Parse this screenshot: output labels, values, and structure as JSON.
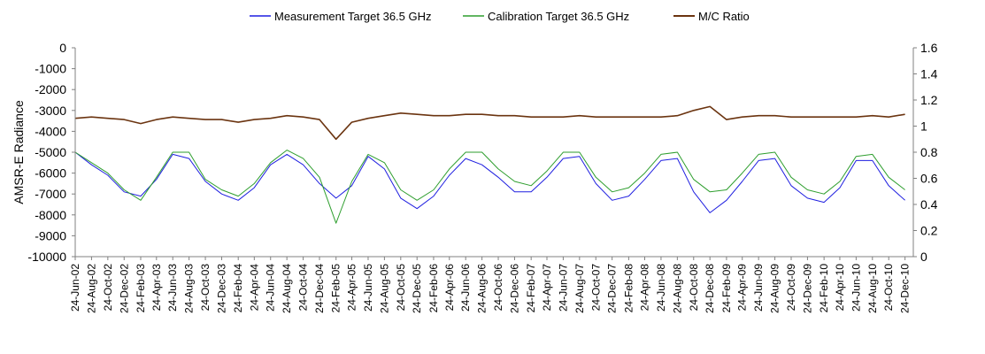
{
  "chart_data": {
    "type": "line",
    "title": "",
    "xlabel": "",
    "ylabel": "AMSR-E Radiance",
    "y2label": "",
    "ylim": [
      -10000,
      0
    ],
    "y2lim": [
      0,
      1.6
    ],
    "xlim": [
      "2002-06-24",
      "2011-01-24"
    ],
    "grid": false,
    "legend_position": "top",
    "yticks": [
      "0",
      "-1000",
      "-2000",
      "-3000",
      "-4000",
      "-5000",
      "-6000",
      "-7000",
      "-8000",
      "-9000",
      "-10000"
    ],
    "y2ticks": [
      "0",
      "0.2",
      "0.4",
      "0.6",
      "0.8",
      "1",
      "1.2",
      "1.4",
      "1.6"
    ],
    "xticks": [
      "24-Jun-02",
      "24-Aug-02",
      "24-Oct-02",
      "24-Dec-02",
      "24-Feb-03",
      "24-Apr-03",
      "24-Jun-03",
      "24-Aug-03",
      "24-Oct-03",
      "24-Dec-03",
      "24-Feb-04",
      "24-Apr-04",
      "24-Jun-04",
      "24-Aug-04",
      "24-Oct-04",
      "24-Dec-04",
      "24-Feb-05",
      "24-Apr-05",
      "24-Jun-05",
      "24-Aug-05",
      "24-Oct-05",
      "24-Dec-05",
      "24-Feb-06",
      "24-Apr-06",
      "24-Jun-06",
      "24-Aug-06",
      "24-Oct-06",
      "24-Dec-06",
      "24-Feb-07",
      "24-Apr-07",
      "24-Jun-07",
      "24-Aug-07",
      "24-Oct-07",
      "24-Dec-07",
      "24-Feb-08",
      "24-Apr-08",
      "24-Jun-08",
      "24-Aug-08",
      "24-Oct-08",
      "24-Dec-08",
      "24-Feb-09",
      "24-Apr-09",
      "24-Jun-09",
      "24-Aug-09",
      "24-Oct-09",
      "24-Dec-09",
      "24-Feb-10",
      "24-Apr-10",
      "24-Jun-10",
      "24-Aug-10",
      "24-Oct-10",
      "24-Dec-10"
    ],
    "series": [
      {
        "name": "Measurement Target 36.5 GHz",
        "color": "#1f1fe0",
        "axis": "left",
        "x": [
          "2002-06-24",
          "2002-08-24",
          "2002-10-24",
          "2002-12-24",
          "2003-02-24",
          "2003-04-24",
          "2003-06-24",
          "2003-08-24",
          "2003-10-24",
          "2003-12-24",
          "2004-02-24",
          "2004-04-24",
          "2004-06-24",
          "2004-08-24",
          "2004-10-24",
          "2004-12-24",
          "2005-02-24",
          "2005-04-24",
          "2005-06-24",
          "2005-08-24",
          "2005-10-24",
          "2005-12-24",
          "2006-02-24",
          "2006-04-24",
          "2006-06-24",
          "2006-08-24",
          "2006-10-24",
          "2006-12-24",
          "2007-02-24",
          "2007-04-24",
          "2007-06-24",
          "2007-08-24",
          "2007-10-24",
          "2007-12-24",
          "2008-02-24",
          "2008-04-24",
          "2008-06-24",
          "2008-08-24",
          "2008-10-24",
          "2008-12-24",
          "2009-02-24",
          "2009-04-24",
          "2009-06-24",
          "2009-08-24",
          "2009-10-24",
          "2009-12-24",
          "2010-02-24",
          "2010-04-24",
          "2010-06-24",
          "2010-08-24",
          "2010-10-24",
          "2010-12-24"
        ],
        "values": [
          -5000,
          -5600,
          -6100,
          -6900,
          -7100,
          -6300,
          -5100,
          -5300,
          -6400,
          -7000,
          -7300,
          -6700,
          -5600,
          -5100,
          -5600,
          -6500,
          -7200,
          -6600,
          -5200,
          -5800,
          -7200,
          -7700,
          -7100,
          -6100,
          -5300,
          -5600,
          -6200,
          -6900,
          -6900,
          -6200,
          -5300,
          -5200,
          -6500,
          -7300,
          -7100,
          -6300,
          -5400,
          -5300,
          -6900,
          -7900,
          -7300,
          -6400,
          -5400,
          -5300,
          -6600,
          -7200,
          -7400,
          -6700,
          -5400,
          -5400,
          -6600,
          -7300
        ]
      },
      {
        "name": "Calibration Target 36.5 GHz",
        "color": "#2e9e2e",
        "axis": "left",
        "x": [
          "2002-06-24",
          "2002-08-24",
          "2002-10-24",
          "2002-12-24",
          "2003-02-24",
          "2003-04-24",
          "2003-06-24",
          "2003-08-24",
          "2003-10-24",
          "2003-12-24",
          "2004-02-24",
          "2004-04-24",
          "2004-06-24",
          "2004-08-24",
          "2004-10-24",
          "2004-12-24",
          "2005-02-24",
          "2005-04-24",
          "2005-06-24",
          "2005-08-24",
          "2005-10-24",
          "2005-12-24",
          "2006-02-24",
          "2006-04-24",
          "2006-06-24",
          "2006-08-24",
          "2006-10-24",
          "2006-12-24",
          "2007-02-24",
          "2007-04-24",
          "2007-06-24",
          "2007-08-24",
          "2007-10-24",
          "2007-12-24",
          "2008-02-24",
          "2008-04-24",
          "2008-06-24",
          "2008-08-24",
          "2008-10-24",
          "2008-12-24",
          "2009-02-24",
          "2009-04-24",
          "2009-06-24",
          "2009-08-24",
          "2009-10-24",
          "2009-12-24",
          "2010-02-24",
          "2010-04-24",
          "2010-06-24",
          "2010-08-24",
          "2010-10-24",
          "2010-12-24"
        ],
        "values": [
          -5000,
          -5500,
          -6000,
          -6800,
          -7300,
          -6200,
          -5000,
          -5000,
          -6300,
          -6800,
          -7100,
          -6500,
          -5500,
          -4900,
          -5300,
          -6200,
          -8400,
          -6400,
          -5100,
          -5500,
          -6800,
          -7300,
          -6800,
          -5800,
          -5000,
          -5000,
          -5800,
          -6400,
          -6600,
          -5900,
          -5000,
          -5000,
          -6200,
          -6900,
          -6700,
          -6000,
          -5100,
          -5000,
          -6300,
          -6900,
          -6800,
          -6000,
          -5100,
          -5000,
          -6200,
          -6800,
          -7000,
          -6400,
          -5200,
          -5100,
          -6200,
          -6800
        ]
      },
      {
        "name": "M/C Ratio",
        "color": "#6b3410",
        "axis": "right",
        "x": [
          "2002-06-24",
          "2002-08-24",
          "2002-10-24",
          "2002-12-24",
          "2003-02-24",
          "2003-04-24",
          "2003-06-24",
          "2003-08-24",
          "2003-10-24",
          "2003-12-24",
          "2004-02-24",
          "2004-04-24",
          "2004-06-24",
          "2004-08-24",
          "2004-10-24",
          "2004-12-24",
          "2005-02-24",
          "2005-04-24",
          "2005-06-24",
          "2005-08-24",
          "2005-10-24",
          "2005-12-24",
          "2006-02-24",
          "2006-04-24",
          "2006-06-24",
          "2006-08-24",
          "2006-10-24",
          "2006-12-24",
          "2007-02-24",
          "2007-04-24",
          "2007-06-24",
          "2007-08-24",
          "2007-10-24",
          "2007-12-24",
          "2008-02-24",
          "2008-04-24",
          "2008-06-24",
          "2008-08-24",
          "2008-10-24",
          "2008-12-24",
          "2009-02-24",
          "2009-04-24",
          "2009-06-24",
          "2009-08-24",
          "2009-10-24",
          "2009-12-24",
          "2010-02-24",
          "2010-04-24",
          "2010-06-24",
          "2010-08-24",
          "2010-10-24",
          "2010-12-24"
        ],
        "values": [
          1.06,
          1.07,
          1.06,
          1.05,
          1.02,
          1.05,
          1.07,
          1.06,
          1.05,
          1.05,
          1.03,
          1.05,
          1.06,
          1.08,
          1.07,
          1.05,
          0.9,
          1.03,
          1.06,
          1.08,
          1.1,
          1.09,
          1.08,
          1.08,
          1.09,
          1.09,
          1.08,
          1.08,
          1.07,
          1.07,
          1.07,
          1.08,
          1.07,
          1.07,
          1.07,
          1.07,
          1.07,
          1.08,
          1.12,
          1.15,
          1.05,
          1.07,
          1.08,
          1.08,
          1.07,
          1.07,
          1.07,
          1.07,
          1.07,
          1.08,
          1.07,
          1.09
        ]
      }
    ]
  }
}
